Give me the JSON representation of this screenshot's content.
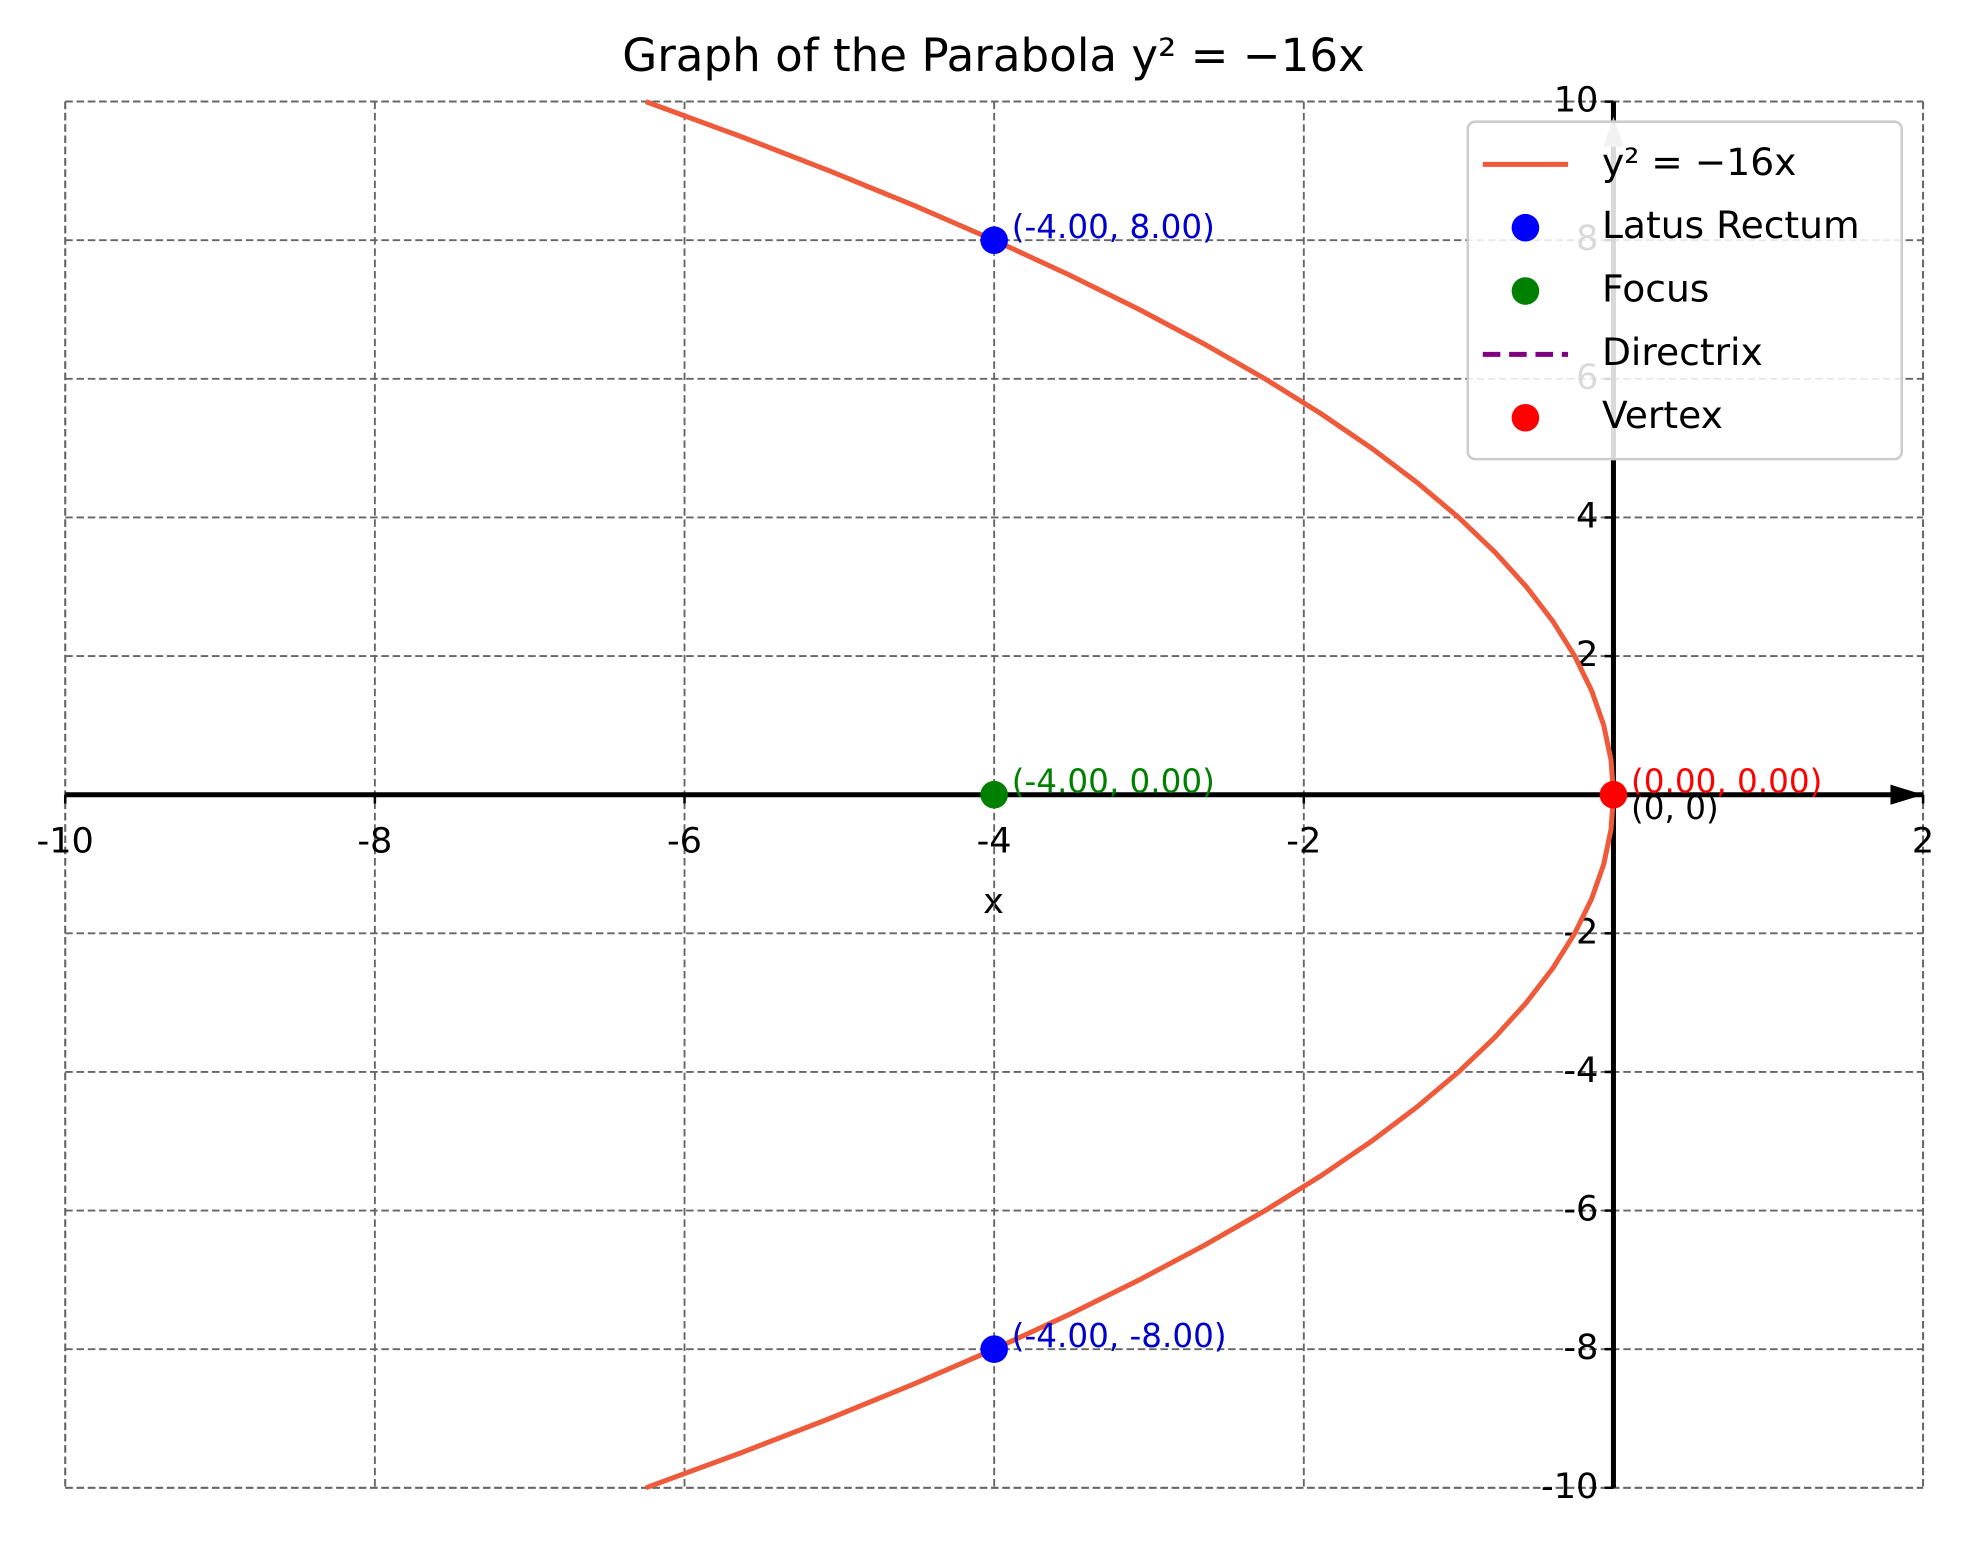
{
  "chart_data": {
    "type": "line",
    "title": "Graph of the Parabola y² = −16x",
    "x_label": "x",
    "xlim": [
      -10,
      2
    ],
    "ylim": [
      -10,
      10
    ],
    "xticks": [
      -10,
      -8,
      -6,
      -4,
      -2,
      2
    ],
    "yticks": [
      -10,
      -8,
      -6,
      -4,
      -2,
      2,
      4,
      6,
      8,
      10
    ],
    "grid": true,
    "legend": "upper right",
    "series": [
      {
        "name": "y² = −16x",
        "type": "line",
        "color": "#ee5a3a",
        "x": [
          -6.25,
          -5.640625,
          -5.0625,
          -4.515625,
          -4,
          -3.515625,
          -3.0625,
          -2.640625,
          -2.25,
          -1.890625,
          -1.5625,
          -1.265625,
          -1,
          -0.765625,
          -0.5625,
          -0.390625,
          -0.25,
          -0.140625,
          -0.0625,
          -0.015625,
          0,
          -0.015625,
          -0.0625,
          -0.140625,
          -0.25,
          -0.390625,
          -0.5625,
          -0.765625,
          -1,
          -1.265625,
          -1.5625,
          -1.890625,
          -2.25,
          -2.640625,
          -3.0625,
          -3.515625,
          -4,
          -4.515625,
          -5.0625,
          -5.640625,
          -6.25
        ],
        "values": [
          -10,
          -9.5,
          -9,
          -8.5,
          -8,
          -7.5,
          -7,
          -6.5,
          -6,
          -5.5,
          -5,
          -4.5,
          -4,
          -3.5,
          -3,
          -2.5,
          -2,
          -1.5,
          -1,
          -0.5,
          0,
          0.5,
          1,
          1.5,
          2,
          2.5,
          3,
          3.5,
          4,
          4.5,
          5,
          5.5,
          6,
          6.5,
          7,
          7.5,
          8,
          8.5,
          9,
          9.5,
          10
        ]
      },
      {
        "name": "Latus Rectum",
        "type": "scatter",
        "color": "#0000ff",
        "label_color": "#0000cc",
        "x": [
          -4,
          -4
        ],
        "values": [
          8,
          -8
        ],
        "value_labels": [
          "(-4.00, 8.00)",
          "(-4.00, -8.00)"
        ]
      },
      {
        "name": "Focus",
        "type": "scatter",
        "color": "#008000",
        "label_color": "#008000",
        "x": [
          -4
        ],
        "values": [
          0
        ],
        "value_labels": [
          "(-4.00, 0.00)"
        ]
      },
      {
        "name": "Directrix",
        "type": "dashed",
        "color": "#800080",
        "x": [],
        "values": []
      },
      {
        "name": "Vertex",
        "type": "scatter",
        "color": "#ff0000",
        "label_color": "#ff0000",
        "x": [
          0
        ],
        "values": [
          0
        ],
        "value_labels": [
          "(0.00, 0.00)"
        ]
      }
    ],
    "annotations": [
      {
        "text": "(0, 0)",
        "x": 0,
        "y": 0
      }
    ]
  }
}
